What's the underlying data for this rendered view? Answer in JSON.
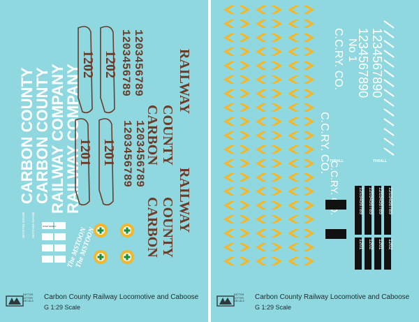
{
  "sheets": [
    {
      "id": "locomotive-decals",
      "caption_title": "Carbon County Railway Locomotive and Caboose",
      "caption_scale": "G 1:29 Scale",
      "logo_tag": "BETTER LETTER DECALS",
      "text_lines": {
        "carbon_county": "CARBON COUNTY",
        "railway_company": "RAILWAY COMPANY",
        "loco_number_a": "1201",
        "loco_number_b": "1202",
        "digit_strip": "1203456789",
        "carbon": "CARBON",
        "county": "COUNTY",
        "railway": "RAILWAY",
        "mstoon": "The MSTOON",
        "step_safely": "STEP SAFELY",
        "brake_release": "BRAKE RELEASE"
      },
      "colors": {
        "sheet": "#8fd8e0",
        "white": "#ffffff",
        "brown": "#6a3c2a",
        "yellow": "#f4b62a",
        "green": "#1f8f3a"
      }
    },
    {
      "id": "caboose-decals",
      "caption_title": "Carbon County Railway Locomotive and Caboose",
      "caption_scale": "G 1:29 Scale",
      "logo_tag": "BETTER LETTER DECALS",
      "text_lines": {
        "cc_ry_co": "C.C.RY. CO.",
        "number_mark": "No 1",
        "digits": "1234567890",
        "thrall": "THRALL",
        "plate_number_a": "1201",
        "plate_number_b": "1202",
        "plate_digits": "1203456789"
      },
      "colors": {
        "sheet": "#8fd8e0",
        "chevron": "#f4b62a",
        "plate": "#111111",
        "white": "#ffffff"
      }
    }
  ]
}
